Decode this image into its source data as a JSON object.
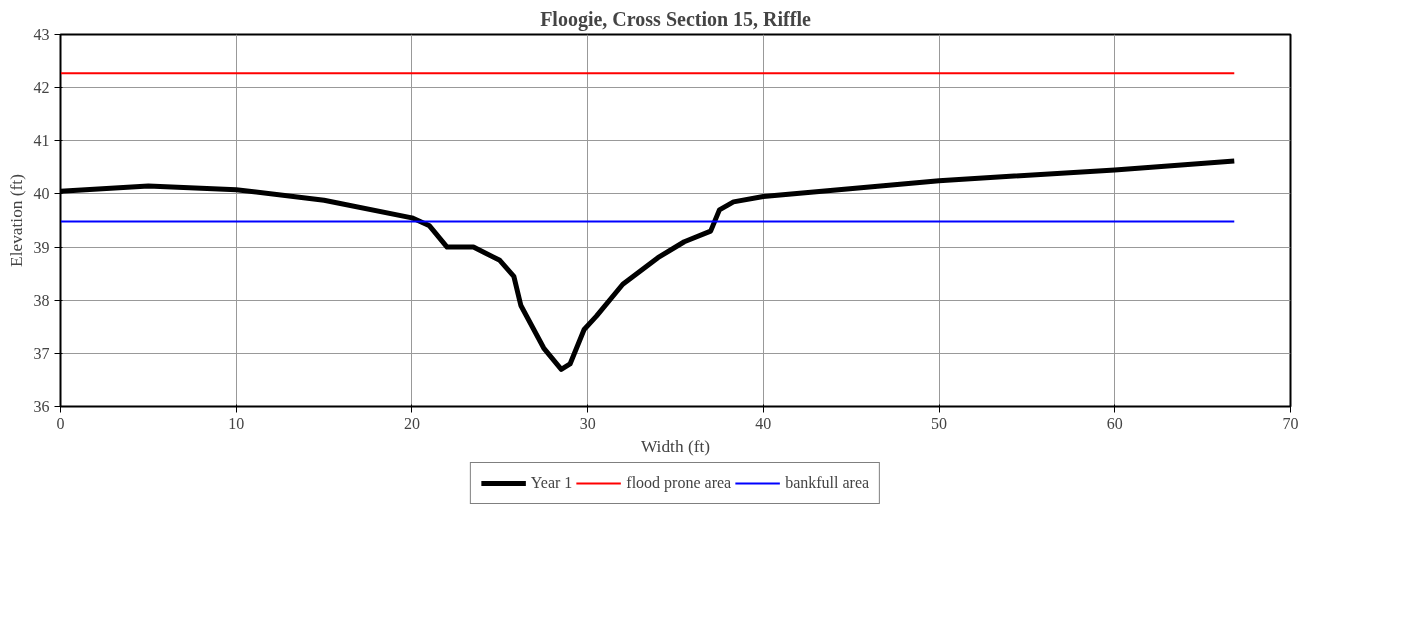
{
  "chart_data": {
    "type": "line",
    "title": "Floogie, Cross Section 15, Riffle",
    "xlabel": "Width (ft)",
    "ylabel": "Elevation (ft)",
    "xlim": [
      0,
      70
    ],
    "xticks": [
      0,
      10,
      20,
      30,
      40,
      50,
      60,
      70
    ],
    "ylim": [
      36,
      43
    ],
    "yticks": [
      36,
      37,
      38,
      39,
      40,
      41,
      42,
      43
    ],
    "grid": true,
    "legend": "bottom",
    "line_style": "solid",
    "marker": "none",
    "series": [
      {
        "name": "Year 1",
        "color": "#000000",
        "x": [
          0,
          5,
          10,
          15,
          20,
          21,
          22,
          23.5,
          25,
          25.8,
          26.2,
          27.5,
          28.5,
          29,
          29.8,
          30.5,
          32,
          34,
          35.5,
          37,
          37.5,
          38.3,
          40,
          50,
          60,
          66.8
        ],
        "values": [
          40.05,
          40.15,
          40.08,
          39.88,
          39.55,
          39.4,
          39.0,
          39.0,
          38.75,
          38.45,
          37.9,
          37.1,
          36.7,
          36.8,
          37.45,
          37.7,
          38.3,
          38.8,
          39.1,
          39.3,
          39.7,
          39.85,
          39.95,
          40.25,
          40.45,
          40.62
        ]
      },
      {
        "name": "flood prone area",
        "color": "#ff0000",
        "x": [
          0,
          66.8
        ],
        "values": [
          42.27,
          42.27
        ]
      },
      {
        "name": "bankfull area",
        "color": "#0000ff",
        "x": [
          0,
          66.8
        ],
        "values": [
          39.48,
          39.48
        ]
      }
    ]
  }
}
